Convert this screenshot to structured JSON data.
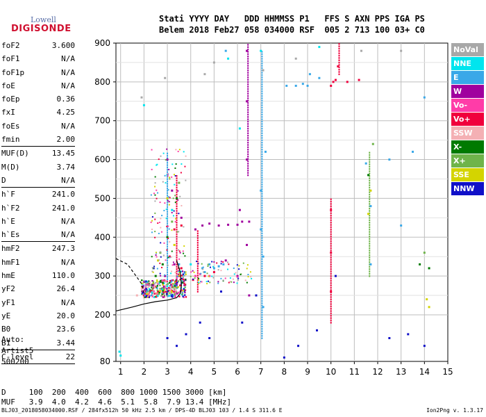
{
  "logo": {
    "line1": "Lowell",
    "line2": "DIGISONDE"
  },
  "header": {
    "line1": "Stati YYYY DAY   DDD HHMMSS P1   FFS S AXN PPS IGA PS",
    "line2": "Belem 2018 Feb27 058 034000 RSF  005 2 713 100 03+ C0"
  },
  "params": [
    {
      "label": "foF2",
      "value": "3.600"
    },
    {
      "label": "foF1",
      "value": "N/A"
    },
    {
      "label": "foF1p",
      "value": "N/A"
    },
    {
      "label": "foE",
      "value": "N/A"
    },
    {
      "label": "foEp",
      "value": "0.36"
    },
    {
      "label": "fxI",
      "value": "4.25"
    },
    {
      "label": "foEs",
      "value": "N/A"
    },
    {
      "label": "fmin",
      "value": "2.00",
      "sep": true
    },
    {
      "label": "MUF(D)",
      "value": "13.45"
    },
    {
      "label": "M(D)",
      "value": "3.74"
    },
    {
      "label": "D",
      "value": "N/A",
      "sep": true
    },
    {
      "label": "h`F",
      "value": "241.0"
    },
    {
      "label": "h`F2",
      "value": "241.0"
    },
    {
      "label": "h`E",
      "value": "N/A"
    },
    {
      "label": "h`Es",
      "value": "N/A",
      "sep": true
    },
    {
      "label": "hmF2",
      "value": "247.3"
    },
    {
      "label": "hmF1",
      "value": "N/A"
    },
    {
      "label": "hmE",
      "value": "110.0"
    },
    {
      "label": "yF2",
      "value": "26.4"
    },
    {
      "label": "yF1",
      "value": "N/A"
    },
    {
      "label": "yE",
      "value": "20.0"
    },
    {
      "label": "B0",
      "value": "23.6"
    },
    {
      "label": "B1",
      "value": "3.44",
      "sep": true
    },
    {
      "label": "C-level",
      "value": "22",
      "sep": true
    }
  ],
  "auto": {
    "line1": "Auto:",
    "line2": "Artist5",
    "line3": "500200"
  },
  "dmuf": {
    "d_row": "D     100  200  400  600  800 1000 1500 3000 [km]",
    "muf_row": "MUF   3.9  4.0  4.2  4.6  5.1  5.8  7.9 13.4 [MHz]"
  },
  "footer": "BLJ03_2018058034000.RSF / 284fx512h 50 kHz 2.5 km / DPS-4D BLJ03 103 / 1.4 S 311.6 E",
  "version": "Ion2Png v. 1.3.17",
  "legend": [
    {
      "label": "NoVal",
      "bg": "#a8a8a8",
      "fg": "#ffffff"
    },
    {
      "label": "NNE",
      "bg": "#00e5ee",
      "fg": "#ffffff"
    },
    {
      "label": "E",
      "bg": "#39a8e8",
      "fg": "#ffffff"
    },
    {
      "label": "W",
      "bg": "#a0009e",
      "fg": "#ffffff"
    },
    {
      "label": "Vo-",
      "bg": "#ff3ca8",
      "fg": "#ffffff"
    },
    {
      "label": "Vo+",
      "bg": "#f0003c",
      "fg": "#ffffff"
    },
    {
      "label": "SSW",
      "bg": "#f4b0b4",
      "fg": "#ffffff"
    },
    {
      "label": "X-",
      "bg": "#007a00",
      "fg": "#ffffff"
    },
    {
      "label": "X+",
      "bg": "#6fb44a",
      "fg": "#ffffff"
    },
    {
      "label": "SSE",
      "bg": "#d4d400",
      "fg": "#ffffff"
    },
    {
      "label": "NNW",
      "bg": "#1010c8",
      "fg": "#ffffff"
    }
  ],
  "chart_data": {
    "type": "scatter",
    "title": "",
    "xlabel": "",
    "ylabel": "",
    "x_ticks": [
      1,
      2,
      3,
      4,
      5,
      6,
      7,
      8,
      9,
      10,
      11,
      12,
      13,
      14,
      15
    ],
    "y_ticks": [
      80,
      200,
      300,
      400,
      500,
      600,
      700,
      800,
      900
    ],
    "xlim": [
      0.8,
      15
    ],
    "ylim": [
      80,
      900
    ],
    "grid": true,
    "legend_position": "right",
    "series": [
      {
        "name": "Vo+",
        "color": "#f0003c",
        "points": [
          [
            2.0,
            250
          ],
          [
            2.2,
            255
          ],
          [
            2.4,
            270
          ],
          [
            2.6,
            260
          ],
          [
            2.8,
            252
          ],
          [
            3.0,
            250
          ],
          [
            3.2,
            262
          ],
          [
            3.4,
            270
          ],
          [
            3.5,
            300
          ],
          [
            3.6,
            320
          ],
          [
            4.1,
            290
          ],
          [
            4.6,
            300
          ],
          [
            5.0,
            310
          ],
          [
            10.0,
            790
          ],
          [
            10.1,
            800
          ],
          [
            10.2,
            805
          ],
          [
            10.0,
            470
          ],
          [
            10.0,
            360
          ],
          [
            10.0,
            260
          ],
          [
            10.3,
            840
          ],
          [
            10.7,
            800
          ],
          [
            11.2,
            805
          ],
          [
            3.1,
            350
          ],
          [
            3.3,
            420
          ],
          [
            3.6,
            430
          ],
          [
            2.1,
            280
          ]
        ]
      },
      {
        "name": "W",
        "color": "#a0009e",
        "points": [
          [
            4.5,
            430
          ],
          [
            4.8,
            435
          ],
          [
            5.2,
            430
          ],
          [
            5.6,
            432
          ],
          [
            6.0,
            432
          ],
          [
            6.1,
            470
          ],
          [
            6.2,
            440
          ],
          [
            6.4,
            880
          ],
          [
            6.4,
            750
          ],
          [
            6.4,
            600
          ],
          [
            6.5,
            440
          ],
          [
            6.4,
            380
          ],
          [
            3.0,
            600
          ],
          [
            3.2,
            520
          ],
          [
            3.6,
            450
          ],
          [
            4.2,
            420
          ],
          [
            6.0,
            300
          ],
          [
            6.5,
            250
          ],
          [
            5.5,
            340
          ],
          [
            2.9,
            300
          ],
          [
            3.3,
            330
          ]
        ]
      },
      {
        "name": "E",
        "color": "#39a8e8",
        "points": [
          [
            4.8,
            330
          ],
          [
            5.0,
            320
          ],
          [
            5.2,
            325
          ],
          [
            5.4,
            330
          ],
          [
            4.6,
            310
          ],
          [
            7.0,
            520
          ],
          [
            7.0,
            420
          ],
          [
            7.1,
            350
          ],
          [
            7.1,
            220
          ],
          [
            7.2,
            620
          ],
          [
            8.1,
            790
          ],
          [
            8.5,
            790
          ],
          [
            8.8,
            795
          ],
          [
            9.1,
            820
          ],
          [
            9.5,
            810
          ],
          [
            9.0,
            790
          ],
          [
            11.5,
            590
          ],
          [
            11.7,
            480
          ],
          [
            11.7,
            330
          ],
          [
            13.0,
            430
          ],
          [
            13.5,
            620
          ],
          [
            14.0,
            760
          ],
          [
            12.5,
            600
          ],
          [
            5.5,
            880
          ],
          [
            3.5,
            330
          ],
          [
            4.5,
            320
          ]
        ]
      },
      {
        "name": "Vo-",
        "color": "#ff3ca8",
        "points": [
          [
            2.3,
            260
          ],
          [
            2.6,
            280
          ],
          [
            2.9,
            270
          ],
          [
            3.4,
            280
          ],
          [
            3.7,
            290
          ],
          [
            4.2,
            300
          ],
          [
            4.4,
            305
          ],
          [
            4.8,
            300
          ]
        ]
      },
      {
        "name": "NNE",
        "color": "#00e5ee",
        "points": [
          [
            0.95,
            105
          ],
          [
            1.0,
            95
          ],
          [
            5.6,
            860
          ],
          [
            6.1,
            680
          ],
          [
            7.0,
            880
          ],
          [
            9.5,
            890
          ],
          [
            3.0,
            560
          ],
          [
            3.2,
            470
          ],
          [
            4.0,
            330
          ],
          [
            2.0,
            740
          ]
        ]
      },
      {
        "name": "SSW",
        "color": "#f4b0b4",
        "points": [
          [
            1.7,
            250
          ],
          [
            2.0,
            245
          ],
          [
            2.4,
            258
          ],
          [
            2.7,
            262
          ],
          [
            3.1,
            268
          ],
          [
            3.3,
            255
          ]
        ]
      },
      {
        "name": "X-",
        "color": "#007a00",
        "points": [
          [
            2.8,
            330
          ],
          [
            3.0,
            400
          ],
          [
            3.4,
            500
          ],
          [
            11.6,
            560
          ],
          [
            2.5,
            300
          ],
          [
            13.8,
            330
          ],
          [
            14.2,
            320
          ]
        ]
      },
      {
        "name": "X+",
        "color": "#6fb44a",
        "points": [
          [
            2.7,
            360
          ],
          [
            3.2,
            440
          ],
          [
            3.5,
            540
          ],
          [
            11.8,
            640
          ],
          [
            14.0,
            360
          ],
          [
            2.4,
            320
          ]
        ]
      },
      {
        "name": "SSE",
        "color": "#d4d400",
        "points": [
          [
            2.6,
            340
          ],
          [
            3.0,
            500
          ],
          [
            3.3,
            380
          ],
          [
            11.6,
            460
          ],
          [
            11.7,
            520
          ],
          [
            14.2,
            220
          ],
          [
            14.1,
            240
          ]
        ]
      },
      {
        "name": "NNW",
        "color": "#1010c8",
        "points": [
          [
            3.0,
            140
          ],
          [
            3.4,
            120
          ],
          [
            3.8,
            150
          ],
          [
            4.4,
            180
          ],
          [
            5.3,
            260
          ],
          [
            6.2,
            180
          ],
          [
            8.0,
            90
          ],
          [
            8.6,
            120
          ],
          [
            9.4,
            160
          ],
          [
            10.2,
            300
          ],
          [
            12.5,
            140
          ],
          [
            13.3,
            150
          ],
          [
            14.0,
            120
          ],
          [
            6.8,
            250
          ],
          [
            4.8,
            140
          ]
        ]
      },
      {
        "name": "NoVal",
        "color": "#a8a8a8",
        "points": [
          [
            1.9,
            760
          ],
          [
            4.6,
            820
          ],
          [
            7.1,
            830
          ],
          [
            8.5,
            860
          ],
          [
            2.9,
            810
          ],
          [
            5.0,
            850
          ],
          [
            11.3,
            880
          ],
          [
            13.0,
            880
          ]
        ]
      }
    ],
    "vertical_streaks": [
      {
        "x": 6.45,
        "y0": 560,
        "y1": 900,
        "color": "#a0009e"
      },
      {
        "x": 7.05,
        "y0": 140,
        "y1": 880,
        "color": "#39a8e8"
      },
      {
        "x": 10.0,
        "y0": 180,
        "y1": 500,
        "color": "#f0003c"
      },
      {
        "x": 10.35,
        "y0": 820,
        "y1": 900,
        "color": "#f0003c"
      },
      {
        "x": 11.65,
        "y0": 300,
        "y1": 620,
        "color": "#6fb44a"
      },
      {
        "x": 6.1,
        "y0": 380,
        "y1": 500,
        "color": "#a0009e"
      },
      {
        "x": 3.7,
        "y0": 270,
        "y1": 620,
        "color": "#a0009e"
      },
      {
        "x": 3.0,
        "y0": 250,
        "y1": 620,
        "color": "#39a8e8"
      },
      {
        "x": 3.4,
        "y0": 270,
        "y1": 560,
        "color": "#f0003c"
      },
      {
        "x": 2.6,
        "y0": 260,
        "y1": 420,
        "color": "#6fb44a"
      },
      {
        "x": 4.3,
        "y0": 260,
        "y1": 420,
        "color": "#f0003c"
      },
      {
        "x": 0.97,
        "y0": 80,
        "y1": 130,
        "color": "#00e5ee"
      }
    ],
    "profile_curve": [
      [
        0.8,
        210
      ],
      [
        1.5,
        220
      ],
      [
        2.0,
        228
      ],
      [
        2.5,
        234
      ],
      [
        3.0,
        238
      ],
      [
        3.4,
        244
      ],
      [
        3.55,
        255
      ],
      [
        3.6,
        275
      ],
      [
        3.55,
        310
      ],
      [
        3.4,
        340
      ]
    ],
    "profile_dashed": [
      [
        0.8,
        345
      ],
      [
        1.3,
        330
      ],
      [
        1.6,
        305
      ],
      [
        1.9,
        280
      ],
      [
        2.0,
        255
      ]
    ]
  }
}
